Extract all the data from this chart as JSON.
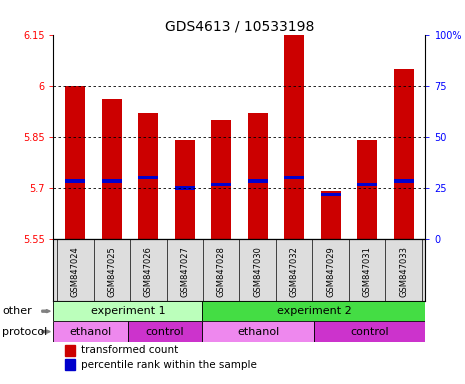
{
  "title": "GDS4613 / 10533198",
  "samples": [
    "GSM847024",
    "GSM847025",
    "GSM847026",
    "GSM847027",
    "GSM847028",
    "GSM847030",
    "GSM847032",
    "GSM847029",
    "GSM847031",
    "GSM847033"
  ],
  "bar_values": [
    6.0,
    5.96,
    5.92,
    5.84,
    5.9,
    5.92,
    6.15,
    5.69,
    5.84,
    6.05
  ],
  "percentile_values": [
    5.72,
    5.72,
    5.73,
    5.7,
    5.71,
    5.72,
    5.73,
    5.68,
    5.71,
    5.72
  ],
  "y_min": 5.55,
  "y_max": 6.15,
  "y_ticks": [
    5.55,
    5.7,
    5.85,
    6.0,
    6.15
  ],
  "y_tick_labels": [
    "5.55",
    "5.7",
    "5.85",
    "6",
    "6.15"
  ],
  "right_y_ticks": [
    0,
    25,
    50,
    75,
    100
  ],
  "right_y_tick_labels": [
    "0",
    "25",
    "50",
    "75",
    "100%"
  ],
  "bar_color": "#cc0000",
  "percentile_color": "#0000cc",
  "grid_color": "#aaaaaa",
  "bar_width": 0.55,
  "exp1_color": "#bbffbb",
  "exp2_color": "#44dd44",
  "ethanol_color": "#ee88ee",
  "control_color": "#cc33cc",
  "legend_red": "transformed count",
  "legend_blue": "percentile rank within the sample",
  "label_fontsize": 8,
  "tick_fontsize": 7,
  "sample_fontsize": 6
}
